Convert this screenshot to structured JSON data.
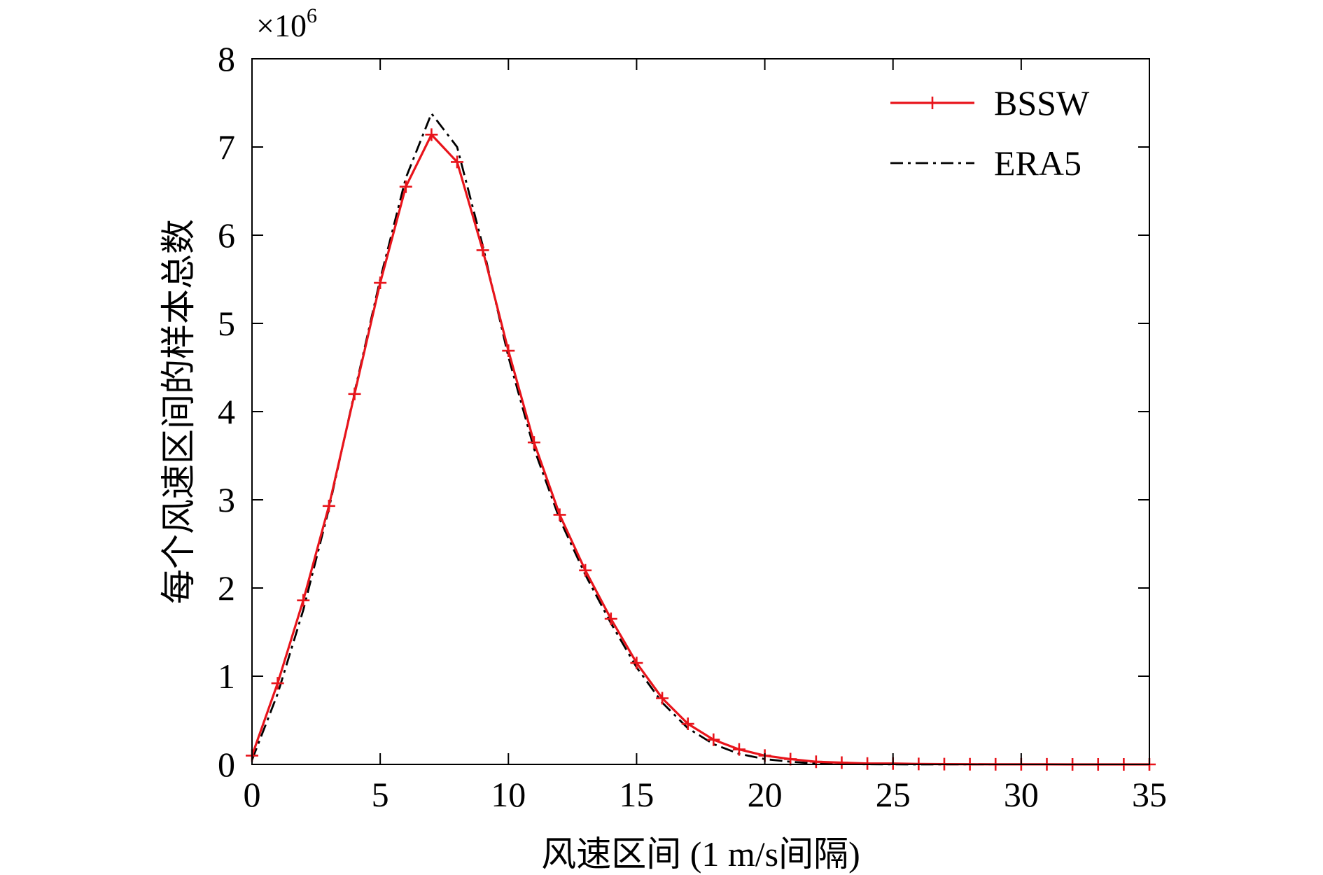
{
  "chart_data": {
    "type": "line",
    "xlabel": "风速区间 (1 m/s间隔)",
    "ylabel": "每个风速区间的样本总数",
    "y_multiplier": {
      "base": "×10",
      "exponent": "6"
    },
    "xlim": [
      0,
      35
    ],
    "ylim": [
      0,
      8
    ],
    "x_ticks": [
      "0",
      "5",
      "10",
      "15",
      "20",
      "25",
      "30",
      "35"
    ],
    "y_ticks": [
      "0",
      "1",
      "2",
      "3",
      "4",
      "5",
      "6",
      "7",
      "8"
    ],
    "grid": false,
    "legend_position": "top-right",
    "x": [
      0,
      1,
      2,
      3,
      4,
      5,
      6,
      7,
      8,
      9,
      10,
      11,
      12,
      13,
      14,
      15,
      16,
      17,
      18,
      19,
      20,
      21,
      22,
      23,
      24,
      25,
      26,
      27,
      28,
      29,
      30,
      31,
      32,
      33,
      34,
      35
    ],
    "series": [
      {
        "name": "BSSW",
        "color": "#e8141b",
        "line_style": "solid",
        "marker": "plus",
        "values": [
          0.1,
          0.92,
          1.86,
          2.93,
          4.2,
          5.46,
          6.55,
          7.14,
          6.83,
          5.83,
          4.69,
          3.65,
          2.83,
          2.2,
          1.65,
          1.15,
          0.75,
          0.46,
          0.28,
          0.17,
          0.1,
          0.06,
          0.03,
          0.02,
          0.01,
          0.01,
          0.005,
          0.003,
          0.002,
          0.001,
          0.001,
          0.001,
          0.0,
          0.0,
          0.0,
          0.0
        ]
      },
      {
        "name": "ERA5",
        "color": "#000000",
        "line_style": "dash-dot",
        "marker": "none",
        "values": [
          0.05,
          0.8,
          1.75,
          2.9,
          4.22,
          5.5,
          6.65,
          7.38,
          7.0,
          5.88,
          4.62,
          3.58,
          2.78,
          2.15,
          1.6,
          1.1,
          0.7,
          0.41,
          0.23,
          0.12,
          0.06,
          0.03,
          0.01,
          0.005,
          0.002,
          0.001,
          0.0,
          0.0,
          0.0,
          0.0,
          0.0,
          0.0,
          0.0,
          0.0,
          0.0,
          0.0
        ]
      }
    ]
  }
}
